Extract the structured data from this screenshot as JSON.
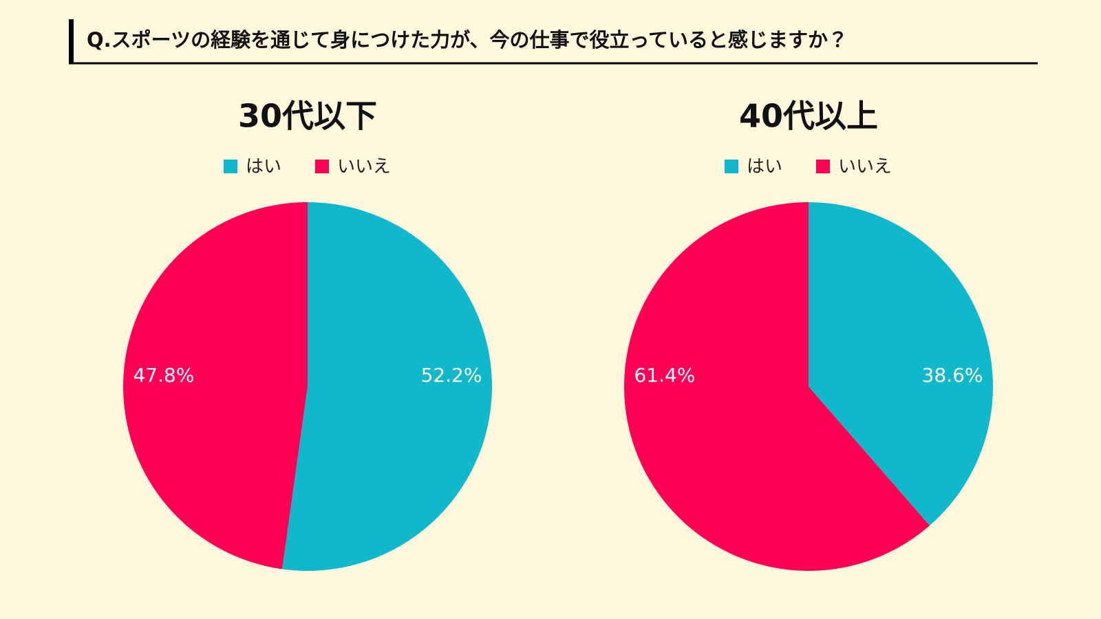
{
  "header": {
    "title": "Q.スポーツの経験を通じて身につけた力が、今の仕事で役立っていると感じますか？"
  },
  "chart_data": [
    {
      "type": "pie",
      "title": "30代以下",
      "categories": [
        "はい",
        "いいえ"
      ],
      "values": [
        52.2,
        47.8
      ],
      "value_labels": [
        "52.2%",
        "47.8%"
      ],
      "colors": [
        "#10b8cc",
        "#ff0055"
      ],
      "legend": "top"
    },
    {
      "type": "pie",
      "title": "40代以上",
      "categories": [
        "はい",
        "いいえ"
      ],
      "values": [
        38.6,
        61.4
      ],
      "value_labels": [
        "38.6%",
        "61.4%"
      ],
      "colors": [
        "#10b8cc",
        "#ff0055"
      ],
      "legend": "top"
    }
  ]
}
